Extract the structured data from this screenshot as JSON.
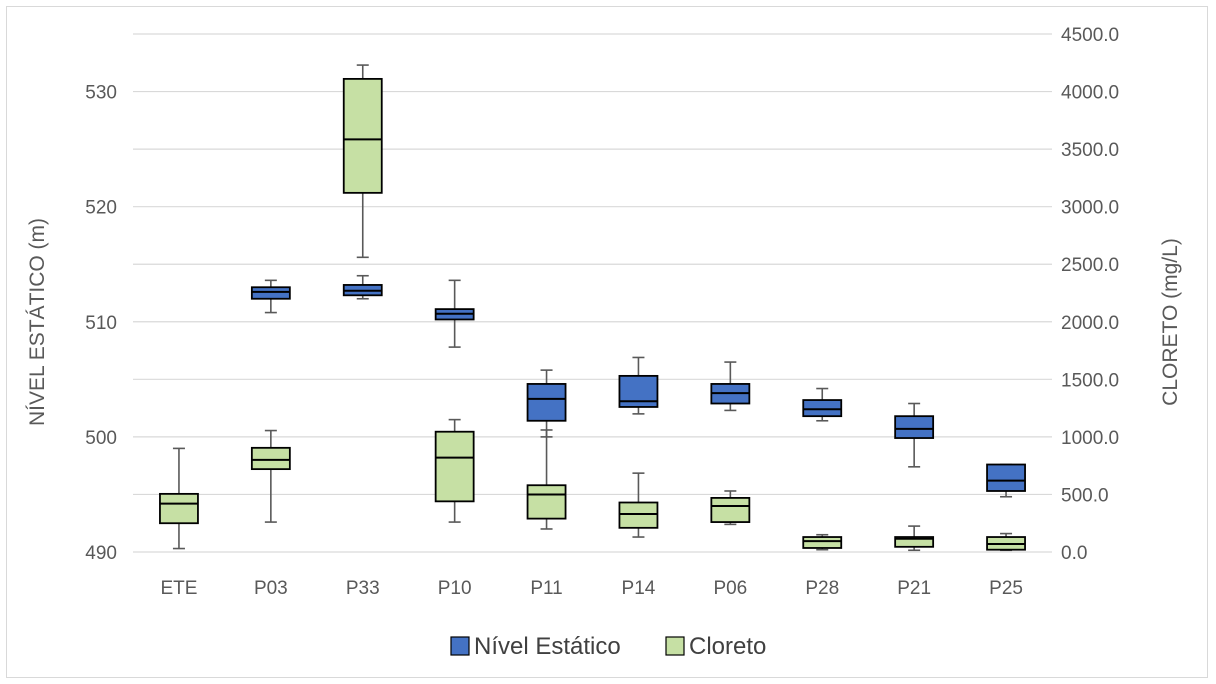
{
  "chart_data": {
    "type": "boxplot",
    "categories": [
      "ETE",
      "P03",
      "P33",
      "P10",
      "P11",
      "P14",
      "P06",
      "P28",
      "P21",
      "P25"
    ],
    "y_left": {
      "label": "NÍVEL ESTÁTICO (m)",
      "range": [
        490,
        535
      ],
      "ticks": [
        490,
        500,
        510,
        520,
        530
      ]
    },
    "y_right": {
      "label": "CLORETO (mg/L)",
      "range": [
        0,
        4500
      ],
      "ticks": [
        "0.0",
        "500.0",
        "1000.0",
        "1500.0",
        "2000.0",
        "2500.0",
        "3000.0",
        "3500.0",
        "4000.0",
        "4500.0"
      ]
    },
    "gridlines": true,
    "legend_position": "bottom",
    "series": [
      {
        "name": "Nível Estático",
        "axis": "left",
        "color": "#4472c4",
        "boxes": [
          null,
          {
            "whisker_low": 510.8,
            "q1": 512.0,
            "median": 512.6,
            "q3": 513.0,
            "whisker_high": 513.6
          },
          {
            "whisker_low": 512.0,
            "q1": 512.3,
            "median": 512.7,
            "q3": 513.2,
            "whisker_high": 514.0
          },
          {
            "whisker_low": 507.8,
            "q1": 510.2,
            "median": 510.7,
            "q3": 511.1,
            "whisker_high": 513.6
          },
          {
            "whisker_low": 500.0,
            "q1": 501.4,
            "median": 503.3,
            "q3": 504.6,
            "whisker_high": 505.8
          },
          {
            "whisker_low": 502.0,
            "q1": 502.6,
            "median": 503.1,
            "q3": 505.3,
            "whisker_high": 506.9
          },
          {
            "whisker_low": 502.3,
            "q1": 502.9,
            "median": 503.8,
            "q3": 504.6,
            "whisker_high": 506.5
          },
          {
            "whisker_low": 501.4,
            "q1": 501.8,
            "median": 502.4,
            "q3": 503.2,
            "whisker_high": 504.2
          },
          {
            "whisker_low": 497.4,
            "q1": 499.9,
            "median": 500.7,
            "q3": 501.8,
            "whisker_high": 502.9
          },
          {
            "whisker_low": 494.8,
            "q1": 495.3,
            "median": 496.2,
            "q3": 497.6,
            "whisker_high": 497.6
          }
        ]
      },
      {
        "name": "Cloreto",
        "axis": "right",
        "color": "#c6e0a4",
        "boxes": [
          {
            "whisker_low": 30,
            "q1": 250,
            "median": 420,
            "q3": 505,
            "whisker_high": 900
          },
          {
            "whisker_low": 260,
            "q1": 720,
            "median": 800,
            "q3": 905,
            "whisker_high": 1055
          },
          {
            "whisker_low": 2560,
            "q1": 3120,
            "median": 3585,
            "q3": 4110,
            "whisker_high": 4230
          },
          {
            "whisker_low": 260,
            "q1": 440,
            "median": 820,
            "q3": 1045,
            "whisker_high": 1150
          },
          {
            "whisker_low": 200,
            "q1": 290,
            "median": 500,
            "q3": 580,
            "whisker_high": 1060
          },
          {
            "whisker_low": 130,
            "q1": 210,
            "median": 330,
            "q3": 430,
            "whisker_high": 685
          },
          {
            "whisker_low": 240,
            "q1": 260,
            "median": 400,
            "q3": 470,
            "whisker_high": 530
          },
          {
            "whisker_low": 20,
            "q1": 35,
            "median": 95,
            "q3": 130,
            "whisker_high": 150
          },
          {
            "whisker_low": 15,
            "q1": 45,
            "median": 115,
            "q3": 130,
            "whisker_high": 225
          },
          {
            "whisker_low": 15,
            "q1": 20,
            "median": 70,
            "q3": 130,
            "whisker_high": 160
          }
        ]
      }
    ]
  }
}
